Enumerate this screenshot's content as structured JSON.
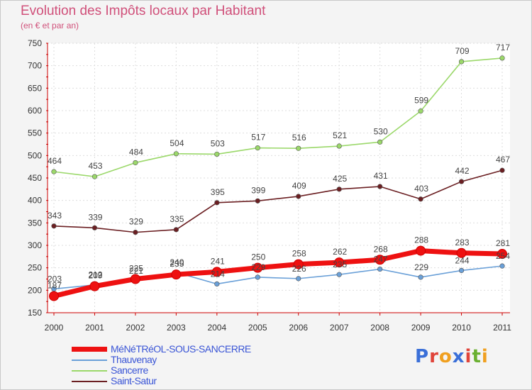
{
  "header": {
    "title": "Evolution des Impôts locaux par Habitant",
    "subtitle": "(en € et par an)"
  },
  "logo": {
    "text": "Proxiti",
    "colors": [
      "#3a6fd8",
      "#e0443a",
      "#f0a020",
      "#3a6fd8",
      "#e0443a",
      "#6ab030",
      "#f0a020"
    ]
  },
  "chart_data": {
    "type": "line",
    "x": [
      "2000",
      "2001",
      "2002",
      "2003",
      "2004",
      "2005",
      "2006",
      "2007",
      "2008",
      "2009",
      "2010",
      "2011"
    ],
    "ylim": [
      150,
      750
    ],
    "yticks": [
      150,
      200,
      250,
      300,
      350,
      400,
      450,
      500,
      550,
      600,
      650,
      700,
      750
    ],
    "grid": true,
    "legend_position": "bottom-left",
    "series": [
      {
        "name": "MéNéTRéOL-SOUS-SANCERRE",
        "color": "#ee1111",
        "values": [
          187,
          209,
          225,
          235,
          241,
          250,
          258,
          262,
          268,
          288,
          283,
          281
        ]
      },
      {
        "name": "Thauvenay",
        "color": "#6aa0d8",
        "values": [
          203,
          212,
          221,
          240,
          214,
          229,
          226,
          235,
          247,
          229,
          244,
          254
        ]
      },
      {
        "name": "Sancerre",
        "color": "#9bd86a",
        "values": [
          464,
          453,
          484,
          504,
          503,
          517,
          516,
          521,
          530,
          599,
          709,
          717
        ]
      },
      {
        "name": "Saint-Satur",
        "color": "#6b1f22",
        "values": [
          343,
          339,
          329,
          335,
          395,
          399,
          409,
          425,
          431,
          403,
          442,
          467
        ]
      }
    ]
  }
}
